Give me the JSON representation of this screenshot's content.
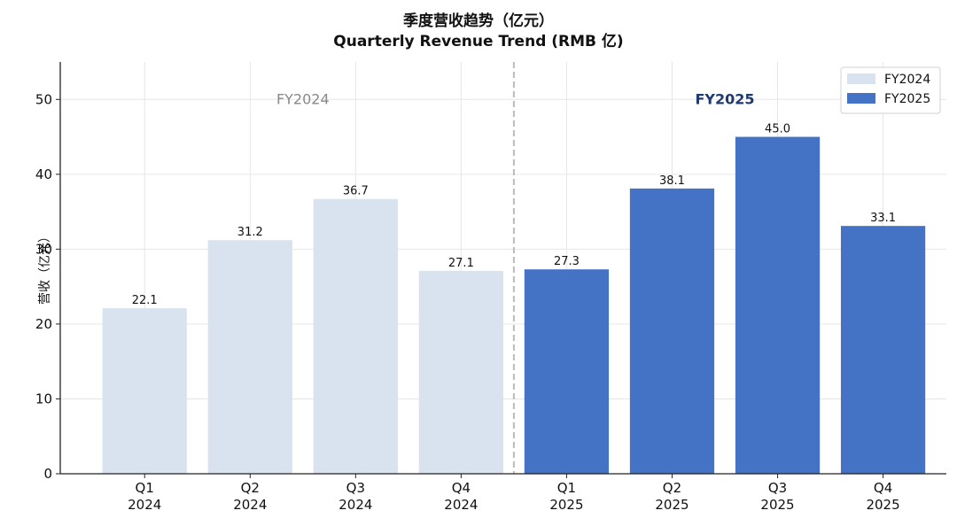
{
  "chart_data": {
    "type": "bar",
    "title_cn": "季度营收趋势（亿元）",
    "title": "Quarterly Revenue Trend (RMB 亿)",
    "xlabel": "",
    "ylabel": "营收（亿元）",
    "ylim": [
      0,
      55
    ],
    "yticks": [
      0,
      10,
      20,
      30,
      40,
      50
    ],
    "grid": true,
    "legend_position": "top-right",
    "categories": [
      {
        "quarter": "Q1",
        "year": "2024"
      },
      {
        "quarter": "Q2",
        "year": "2024"
      },
      {
        "quarter": "Q3",
        "year": "2024"
      },
      {
        "quarter": "Q4",
        "year": "2024"
      },
      {
        "quarter": "Q1",
        "year": "2025"
      },
      {
        "quarter": "Q2",
        "year": "2025"
      },
      {
        "quarter": "Q3",
        "year": "2025"
      },
      {
        "quarter": "Q4",
        "year": "2025"
      }
    ],
    "series": [
      {
        "name": "FY2024",
        "color": "#d9e2ef",
        "values": [
          22.1,
          31.2,
          36.7,
          27.1,
          null,
          null,
          null,
          null
        ]
      },
      {
        "name": "FY2025",
        "color": "#4472c4",
        "values": [
          null,
          null,
          null,
          null,
          27.3,
          38.1,
          45.0,
          33.1
        ]
      }
    ],
    "annotations": [
      {
        "text": "FY2024",
        "color": "#888888",
        "bold": false,
        "group": 0
      },
      {
        "text": "FY2025",
        "color": "#1f3a6e",
        "bold": true,
        "group": 1
      }
    ],
    "divider_after_index": 3
  }
}
